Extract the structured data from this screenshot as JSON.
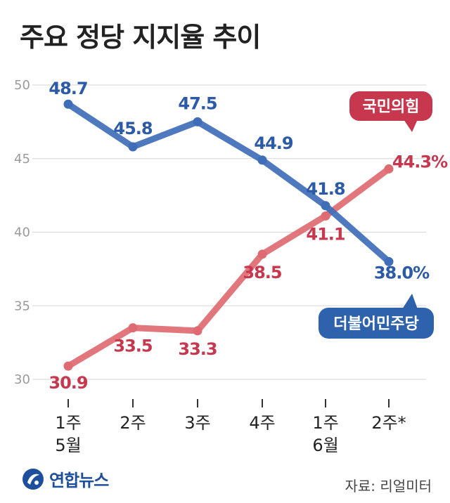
{
  "title": "주요 정당 지지율 추이",
  "chart_data": {
    "type": "line",
    "title": "주요 정당 지지율 추이",
    "categories": [
      "1주\n5월",
      "2주",
      "3주",
      "4주",
      "1주\n6월",
      "2주*"
    ],
    "ylim": [
      30,
      50
    ],
    "yticks": [
      30,
      35,
      40,
      45,
      50
    ],
    "grid": true,
    "series": [
      {
        "name": "더불어민주당",
        "color": "#3f6eb8",
        "values": [
          48.7,
          45.8,
          47.5,
          44.9,
          41.8,
          38.0
        ],
        "labels": [
          "48.7",
          "45.8",
          "47.5",
          "44.9",
          "41.8",
          "38.0%"
        ]
      },
      {
        "name": "국민의힘",
        "color": "#e06a72",
        "values": [
          30.9,
          33.5,
          33.3,
          38.5,
          41.1,
          44.3
        ],
        "labels": [
          "30.9",
          "33.5",
          "33.3",
          "38.5",
          "41.1",
          "44.3%"
        ]
      }
    ]
  },
  "colors": {
    "dem_label": "#2a5aa8",
    "ppp_label": "#c7384e",
    "dem_badge": "#2e62ad",
    "ppp_badge": "#c7384e"
  },
  "brand": {
    "name": "연합뉴스",
    "icon": "yonhap-logo"
  },
  "source": "자료: 리얼미터"
}
